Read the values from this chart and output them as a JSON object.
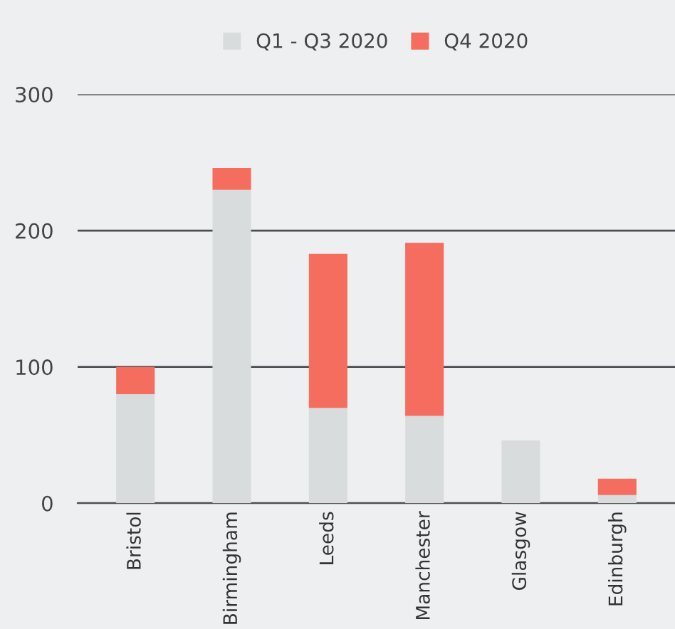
{
  "chart_data": {
    "type": "bar",
    "stacked": true,
    "categories": [
      "Bristol",
      "Birmingham",
      "Leeds",
      "Manchester",
      "Glasgow",
      "Edinburgh"
    ],
    "series": [
      {
        "name": "Q1 - Q3 2020",
        "color": "#d9dcdd",
        "values": [
          80,
          230,
          70,
          64,
          46,
          6
        ]
      },
      {
        "name": "Q4 2020",
        "color": "#f46d5e",
        "values": [
          20,
          16,
          113,
          127,
          null,
          12
        ]
      }
    ],
    "ylim": [
      0,
      300
    ],
    "yticks": [
      0,
      100,
      200,
      300
    ],
    "grid": "y",
    "legend": "top"
  }
}
